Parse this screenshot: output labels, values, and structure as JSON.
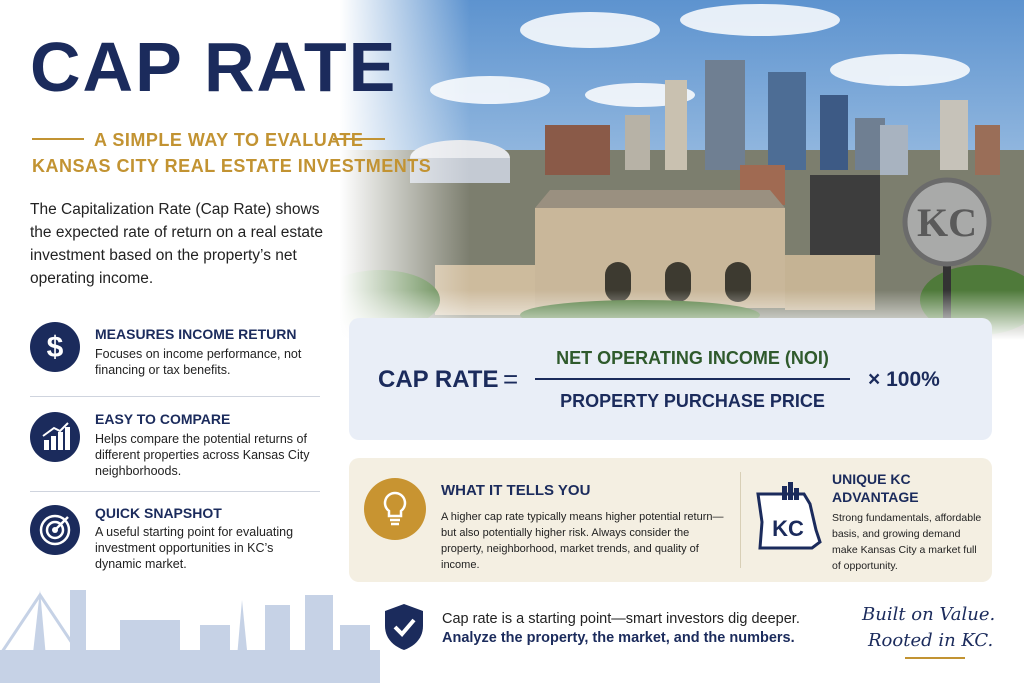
{
  "header": {
    "title": "CAP RATE",
    "subtitle": [
      "A SIMPLE WAY TO EVALUATE",
      "KANSAS CITY REAL ESTATE INVESTMENTS"
    ]
  },
  "intro": "The Capitalization Rate (Cap Rate) shows the expected rate of return on a real estate investment based on the property’s net operating income.",
  "features": [
    {
      "title": "MEASURES INCOME RETURN",
      "text": "Focuses on income performance, not financing or tax benefits."
    },
    {
      "title": "EASY TO COMPARE",
      "text": "Helps compare the potential returns of different properties across Kansas City neighborhoods."
    },
    {
      "title": "QUICK SNAPSHOT",
      "text": "A useful starting point for evaluating investment opportunities in KC’s dynamic market."
    }
  ],
  "formula": {
    "label": "CAP RATE",
    "equals": "=",
    "numerator": "NET OPERATING INCOME (NOI)",
    "denominator": "PROPERTY PURCHASE PRICE",
    "multiplier": "× 100%"
  },
  "insight": {
    "title": "WHAT IT TELLS YOU",
    "text": "A higher cap rate typically means higher potential return—but also potentially higher risk. Always consider the property, neighborhood, market trends, and quality of income."
  },
  "advantage": {
    "icon_text": "KC",
    "title": "UNIQUE KC ADVANTAGE",
    "text": "Strong fundamentals, affordable basis, and growing demand make Kansas City a market full of opportunity."
  },
  "photo": {
    "sign_text": "KC"
  },
  "footer": {
    "line1": "Cap rate is a starting point—smart investors dig deeper.",
    "line2": "Analyze the property, the market, and the numbers.",
    "tagline": [
      "Built on Value.",
      "Rooted in KC."
    ]
  }
}
